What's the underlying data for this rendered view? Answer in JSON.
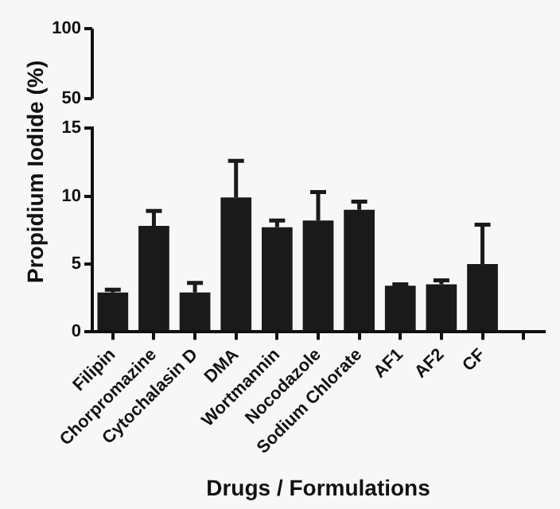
{
  "chart_data": [
    {
      "type": "other",
      "annotations": [
        "100",
        "50"
      ]
    },
    {
      "type": "bar",
      "xlabel": "Drugs / Formulations",
      "ylabel": "Propidium Iodide (%)",
      "categories": [
        "Filipin",
        "Chorpromazine",
        "Cytochalasin D",
        "DMA",
        "Wortmannin",
        "Nocodazole",
        "Sodium Chlorate",
        "AF1",
        "AF2",
        "CF",
        null
      ],
      "series": [
        {
          "color": "#1a1a1a",
          "values": [
            2.9,
            7.8,
            2.9,
            9.9,
            7.7,
            8.2,
            9.0,
            3.4,
            3.5,
            5.0,
            null
          ],
          "errors": [
            [
              2.9,
              3.1
            ],
            [
              7.8,
              8.9
            ],
            [
              2.9,
              3.6
            ],
            [
              9.9,
              12.6
            ],
            [
              7.7,
              8.2
            ],
            [
              8.2,
              10.3
            ],
            [
              9.0,
              9.6
            ],
            [
              3.4,
              3.5
            ],
            [
              3.5,
              3.8
            ],
            [
              5.0,
              7.9
            ],
            null
          ]
        }
      ],
      "ylim": [
        0,
        15
      ],
      "yticks": [
        0,
        5,
        10,
        15
      ]
    }
  ]
}
